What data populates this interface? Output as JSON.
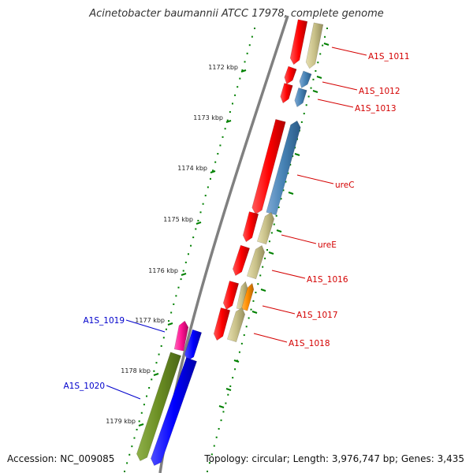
{
  "title": "Acinetobacter baumannii ATCC 17978, complete genome",
  "accession": "Accession: NC_009085",
  "topology": "Topology: circular; Length: 3,976,747 bp; Genes: 3,435",
  "scale_ticks": [
    "1172 kbp",
    "1173 kbp",
    "1174 kbp",
    "1175 kbp",
    "1176 kbp",
    "1177 kbp",
    "1178 kbp",
    "1179 kbp"
  ],
  "genes_right": [
    "A1S_1011",
    "A1S_1012",
    "A1S_1013",
    "ureC",
    "ureE",
    "A1S_1016",
    "A1S_1017",
    "A1S_1018"
  ],
  "genes_left": [
    "A1S_1019",
    "A1S_1020"
  ],
  "colors": {
    "cds_red": "#ff0000",
    "cds_blue": "#4682b4",
    "cds_khaki": "#c8c088",
    "cds_olive": "#6b8e23",
    "cds_deepblue": "#0000ff",
    "cds_pink": "#ff1493",
    "cds_orange": "#ff8c00",
    "label_red": "#d40000",
    "label_blue": "#0000cc",
    "tick_green": "#008000",
    "backbone": "#808080"
  }
}
